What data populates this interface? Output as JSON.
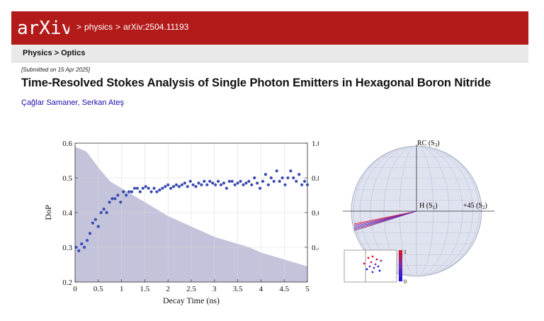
{
  "header": {
    "logo_text": "arXiv",
    "breadcrumbs": [
      "physics",
      "arXiv:2504.11193"
    ],
    "separator": ">"
  },
  "subheader": {
    "category": "Physics > Optics"
  },
  "paper": {
    "submitted": "[Submitted on 15 Apr 2025]",
    "title": "Time-Resolved Stokes Analysis of Single Photon Emitters in Hexagonal Boron Nitride",
    "authors": [
      "Çağlar Samaner",
      "Serkan Ateş"
    ],
    "author_sep": ", "
  },
  "colors": {
    "brand": "#b31b1b",
    "dop_points": "#3b4bb3",
    "decay_fill": "#b8b8d6"
  },
  "chart_data": [
    {
      "type": "scatter",
      "xlabel": "Decay Time (ns)",
      "ylabel": "DoP",
      "xlim": [
        0,
        5
      ],
      "ylim": [
        0.2,
        0.6
      ],
      "y2lim": [
        0.2,
        1.0
      ],
      "x_ticks": [
        "0",
        "0.5",
        "1",
        "1.5",
        "2",
        "2.5",
        "3",
        "3.5",
        "4",
        "4.5",
        "5"
      ],
      "y_ticks": [
        "0.2",
        "0.3",
        "0.4",
        "0.5",
        "0.6"
      ],
      "y2_ticks": [
        "0.4",
        "0.6",
        "0.8",
        "1.0"
      ],
      "grid": true,
      "series": [
        {
          "x": [
            0.02,
            0.08,
            0.14,
            0.2,
            0.26,
            0.32,
            0.38,
            0.44,
            0.5,
            0.56,
            0.62,
            0.68,
            0.74,
            0.8,
            0.86,
            0.92,
            0.98,
            1.04,
            1.1,
            1.16,
            1.22,
            1.28,
            1.34,
            1.4,
            1.46,
            1.52,
            1.58,
            1.64,
            1.7,
            1.76,
            1.82,
            1.88,
            1.94,
            2.0,
            2.06,
            2.12,
            2.18,
            2.24,
            2.3,
            2.36,
            2.42,
            2.48,
            2.54,
            2.6,
            2.66,
            2.72,
            2.78,
            2.84,
            2.9,
            2.96,
            3.02,
            3.08,
            3.14,
            3.2,
            3.26,
            3.32,
            3.38,
            3.44,
            3.5,
            3.56,
            3.62,
            3.68,
            3.74,
            3.8,
            3.86,
            3.92,
            3.98,
            4.04,
            4.1,
            4.16,
            4.22,
            4.28,
            4.34,
            4.4,
            4.46,
            4.52,
            4.58,
            4.64,
            4.7,
            4.76,
            4.82,
            4.88,
            4.94,
            5.0
          ],
          "values": [
            0.3,
            0.29,
            0.31,
            0.3,
            0.32,
            0.34,
            0.37,
            0.38,
            0.36,
            0.4,
            0.41,
            0.4,
            0.43,
            0.44,
            0.44,
            0.45,
            0.43,
            0.46,
            0.45,
            0.46,
            0.46,
            0.47,
            0.47,
            0.46,
            0.47,
            0.475,
            0.47,
            0.46,
            0.47,
            0.46,
            0.465,
            0.47,
            0.475,
            0.48,
            0.47,
            0.475,
            0.48,
            0.475,
            0.48,
            0.485,
            0.475,
            0.49,
            0.48,
            0.475,
            0.485,
            0.48,
            0.49,
            0.48,
            0.49,
            0.485,
            0.48,
            0.49,
            0.48,
            0.485,
            0.47,
            0.49,
            0.49,
            0.48,
            0.485,
            0.49,
            0.48,
            0.485,
            0.49,
            0.48,
            0.5,
            0.485,
            0.47,
            0.49,
            0.51,
            0.48,
            0.5,
            0.49,
            0.52,
            0.49,
            0.5,
            0.48,
            0.5,
            0.52,
            0.5,
            0.49,
            0.51,
            0.48,
            0.49,
            0.48
          ]
        },
        {
          "x": [
            0,
            0.25,
            0.5,
            0.75,
            1.0,
            1.25,
            1.5,
            1.75,
            2.0,
            2.25,
            2.5,
            2.75,
            3.0,
            3.25,
            3.5,
            3.75,
            4.0,
            4.25,
            4.5,
            4.75,
            5.0
          ],
          "values": [
            0.98,
            0.95,
            0.86,
            0.78,
            0.74,
            0.7,
            0.66,
            0.62,
            0.58,
            0.55,
            0.52,
            0.49,
            0.46,
            0.44,
            0.42,
            0.4,
            0.37,
            0.35,
            0.33,
            0.31,
            0.29
          ]
        }
      ]
    },
    {
      "type": "other",
      "labels": [
        "RC (S",
        "3",
        ")",
        "H (S",
        "1",
        ")",
        "+45 (S",
        "2",
        ")"
      ],
      "colorbar_ticks": [
        "1",
        "0"
      ]
    }
  ]
}
